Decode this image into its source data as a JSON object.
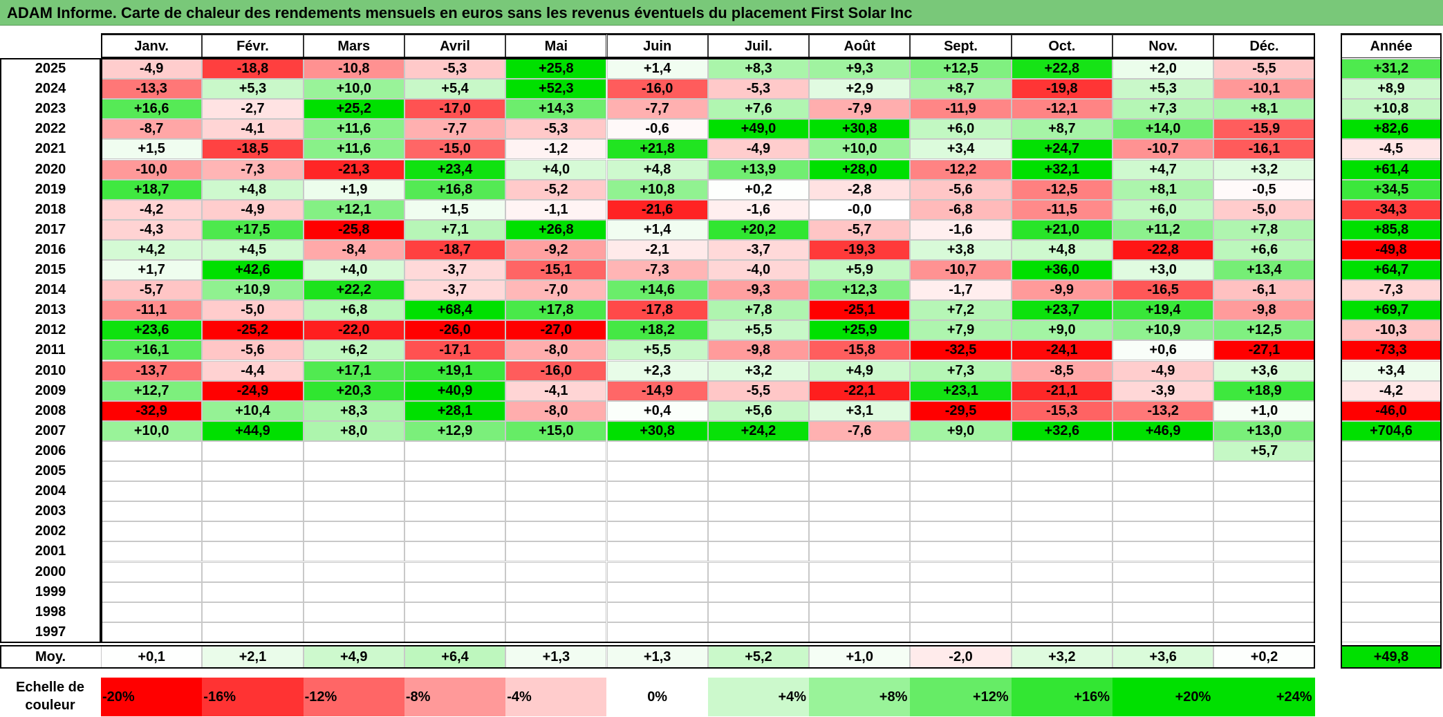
{
  "title": "ADAM Informe. Carte de chaleur des rendements mensuels en euros sans les revenus éventuels du placement First Solar Inc",
  "chart_data": {
    "type": "heatmap",
    "months": [
      "Janv.",
      "Févr.",
      "Mars",
      "Avril",
      "Mai",
      "Juin",
      "Juil.",
      "Août",
      "Sept.",
      "Oct.",
      "Nov.",
      "Déc."
    ],
    "annual_header": "Année",
    "rows": [
      {
        "year": "2025",
        "values": [
          "-4,9",
          "-18,8",
          "-10,8",
          "-5,3",
          "+25,8",
          "+1,4",
          "+8,3",
          "+9,3",
          "+12,5",
          "+22,8",
          "+2,0",
          "-5,5"
        ],
        "annual": "+31,2"
      },
      {
        "year": "2024",
        "values": [
          "-13,3",
          "+5,3",
          "+10,0",
          "+5,4",
          "+52,3",
          "-16,0",
          "-5,3",
          "+2,9",
          "+8,7",
          "-19,8",
          "+5,3",
          "-10,1"
        ],
        "annual": "+8,9"
      },
      {
        "year": "2023",
        "values": [
          "+16,6",
          "-2,7",
          "+25,2",
          "-17,0",
          "+14,3",
          "-7,7",
          "+7,6",
          "-7,9",
          "-11,9",
          "-12,1",
          "+7,3",
          "+8,1"
        ],
        "annual": "+10,8"
      },
      {
        "year": "2022",
        "values": [
          "-8,7",
          "-4,1",
          "+11,6",
          "-7,7",
          "-5,3",
          "-0,6",
          "+49,0",
          "+30,8",
          "+6,0",
          "+8,7",
          "+14,0",
          "-15,9"
        ],
        "annual": "+82,6"
      },
      {
        "year": "2021",
        "values": [
          "+1,5",
          "-18,5",
          "+11,6",
          "-15,0",
          "-1,2",
          "+21,8",
          "-4,9",
          "+10,0",
          "+3,4",
          "+24,7",
          "-10,7",
          "-16,1"
        ],
        "annual": "-4,5"
      },
      {
        "year": "2020",
        "values": [
          "-10,0",
          "-7,3",
          "-21,3",
          "+23,4",
          "+4,0",
          "+4,8",
          "+13,9",
          "+28,0",
          "-12,2",
          "+32,1",
          "+4,7",
          "+3,2"
        ],
        "annual": "+61,4"
      },
      {
        "year": "2019",
        "values": [
          "+18,7",
          "+4,8",
          "+1,9",
          "+16,8",
          "-5,2",
          "+10,8",
          "+0,2",
          "-2,8",
          "-5,6",
          "-12,5",
          "+8,1",
          "-0,5"
        ],
        "annual": "+34,5"
      },
      {
        "year": "2018",
        "values": [
          "-4,2",
          "-4,9",
          "+12,1",
          "+1,5",
          "-1,1",
          "-21,6",
          "-1,6",
          "-0,0",
          "-6,8",
          "-11,5",
          "+6,0",
          "-5,0"
        ],
        "annual": "-34,3"
      },
      {
        "year": "2017",
        "values": [
          "-4,3",
          "+17,5",
          "-25,8",
          "+7,1",
          "+26,8",
          "+1,4",
          "+20,2",
          "-5,7",
          "-1,6",
          "+21,0",
          "+11,2",
          "+7,8"
        ],
        "annual": "+85,8"
      },
      {
        "year": "2016",
        "values": [
          "+4,2",
          "+4,5",
          "-8,4",
          "-18,7",
          "-9,2",
          "-2,1",
          "-3,7",
          "-19,3",
          "+3,8",
          "+4,8",
          "-22,8",
          "+6,6"
        ],
        "annual": "-49,8"
      },
      {
        "year": "2015",
        "values": [
          "+1,7",
          "+42,6",
          "+4,0",
          "-3,7",
          "-15,1",
          "-7,3",
          "-4,0",
          "+5,9",
          "-10,7",
          "+36,0",
          "+3,0",
          "+13,4"
        ],
        "annual": "+64,7"
      },
      {
        "year": "2014",
        "values": [
          "-5,7",
          "+10,9",
          "+22,2",
          "-3,7",
          "-7,0",
          "+14,6",
          "-9,3",
          "+12,3",
          "-1,7",
          "-9,9",
          "-16,5",
          "-6,1"
        ],
        "annual": "-7,3"
      },
      {
        "year": "2013",
        "values": [
          "-11,1",
          "-5,0",
          "+6,8",
          "+68,4",
          "+17,8",
          "-17,8",
          "+7,8",
          "-25,1",
          "+7,2",
          "+23,7",
          "+19,4",
          "-9,8"
        ],
        "annual": "+69,7"
      },
      {
        "year": "2012",
        "values": [
          "+23,6",
          "-25,2",
          "-22,0",
          "-26,0",
          "-27,0",
          "+18,2",
          "+5,5",
          "+25,9",
          "+7,9",
          "+9,0",
          "+10,9",
          "+12,5"
        ],
        "annual": "-10,3"
      },
      {
        "year": "2011",
        "values": [
          "+16,1",
          "-5,6",
          "+6,2",
          "-17,1",
          "-8,0",
          "+5,5",
          "-9,8",
          "-15,8",
          "-32,5",
          "-24,1",
          "+0,6",
          "-27,1"
        ],
        "annual": "-73,3"
      },
      {
        "year": "2010",
        "values": [
          "-13,7",
          "-4,4",
          "+17,1",
          "+19,1",
          "-16,0",
          "+2,3",
          "+3,2",
          "+4,9",
          "+7,3",
          "-8,5",
          "-4,9",
          "+3,6"
        ],
        "annual": "+3,4"
      },
      {
        "year": "2009",
        "values": [
          "+12,7",
          "-24,9",
          "+20,3",
          "+40,9",
          "-4,1",
          "-14,9",
          "-5,5",
          "-22,1",
          "+23,1",
          "-21,1",
          "-3,9",
          "+18,9"
        ],
        "annual": "-4,2"
      },
      {
        "year": "2008",
        "values": [
          "-32,9",
          "+10,4",
          "+8,3",
          "+28,1",
          "-8,0",
          "+0,4",
          "+5,6",
          "+3,1",
          "-29,5",
          "-15,3",
          "-13,2",
          "+1,0"
        ],
        "annual": "-46,0"
      },
      {
        "year": "2007",
        "values": [
          "+10,0",
          "+44,9",
          "+8,0",
          "+12,9",
          "+15,0",
          "+30,8",
          "+24,2",
          "-7,6",
          "+9,0",
          "+32,6",
          "+46,9",
          "+13,0"
        ],
        "annual": "+704,6"
      },
      {
        "year": "2006",
        "values": [
          "",
          "",
          "",
          "",
          "",
          "",
          "",
          "",
          "",
          "",
          "",
          "+5,7"
        ],
        "annual": ""
      },
      {
        "year": "2005",
        "values": [
          "",
          "",
          "",
          "",
          "",
          "",
          "",
          "",
          "",
          "",
          "",
          ""
        ],
        "annual": ""
      },
      {
        "year": "2004",
        "values": [
          "",
          "",
          "",
          "",
          "",
          "",
          "",
          "",
          "",
          "",
          "",
          ""
        ],
        "annual": ""
      },
      {
        "year": "2003",
        "values": [
          "",
          "",
          "",
          "",
          "",
          "",
          "",
          "",
          "",
          "",
          "",
          ""
        ],
        "annual": ""
      },
      {
        "year": "2002",
        "values": [
          "",
          "",
          "",
          "",
          "",
          "",
          "",
          "",
          "",
          "",
          "",
          ""
        ],
        "annual": ""
      },
      {
        "year": "2001",
        "values": [
          "",
          "",
          "",
          "",
          "",
          "",
          "",
          "",
          "",
          "",
          "",
          ""
        ],
        "annual": ""
      },
      {
        "year": "2000",
        "values": [
          "",
          "",
          "",
          "",
          "",
          "",
          "",
          "",
          "",
          "",
          "",
          ""
        ],
        "annual": ""
      },
      {
        "year": "1999",
        "values": [
          "",
          "",
          "",
          "",
          "",
          "",
          "",
          "",
          "",
          "",
          "",
          ""
        ],
        "annual": ""
      },
      {
        "year": "1998",
        "values": [
          "",
          "",
          "",
          "",
          "",
          "",
          "",
          "",
          "",
          "",
          "",
          ""
        ],
        "annual": ""
      },
      {
        "year": "1997",
        "values": [
          "",
          "",
          "",
          "",
          "",
          "",
          "",
          "",
          "",
          "",
          "",
          ""
        ],
        "annual": ""
      }
    ],
    "average": {
      "label": "Moy.",
      "values": [
        "+0,1",
        "+2,1",
        "+4,9",
        "+6,4",
        "+1,3",
        "+1,3",
        "+5,2",
        "+1,0",
        "-2,0",
        "+3,2",
        "+3,6",
        "+0,2"
      ],
      "annual": "+49,8"
    },
    "color_scale": {
      "label_line1": "Echelle de",
      "label_line2": "couleur",
      "steps": [
        {
          "label": "-20%",
          "value": -20
        },
        {
          "label": "-16%",
          "value": -16
        },
        {
          "label": "-12%",
          "value": -12
        },
        {
          "label": "-8%",
          "value": -8
        },
        {
          "label": "-4%",
          "value": -4
        },
        {
          "label": "0%",
          "value": 0
        },
        {
          "label": "+4%",
          "value": 4
        },
        {
          "label": "+8%",
          "value": 8
        },
        {
          "label": "+12%",
          "value": 12
        },
        {
          "label": "+16%",
          "value": 16
        },
        {
          "label": "+20%",
          "value": 20
        },
        {
          "label": "+24%",
          "value": 24
        }
      ]
    },
    "colors": {
      "title_bar": "#79c879",
      "negative_max": "#ff0000",
      "neutral": "#ffffff",
      "positive_max": "#00e000"
    }
  }
}
